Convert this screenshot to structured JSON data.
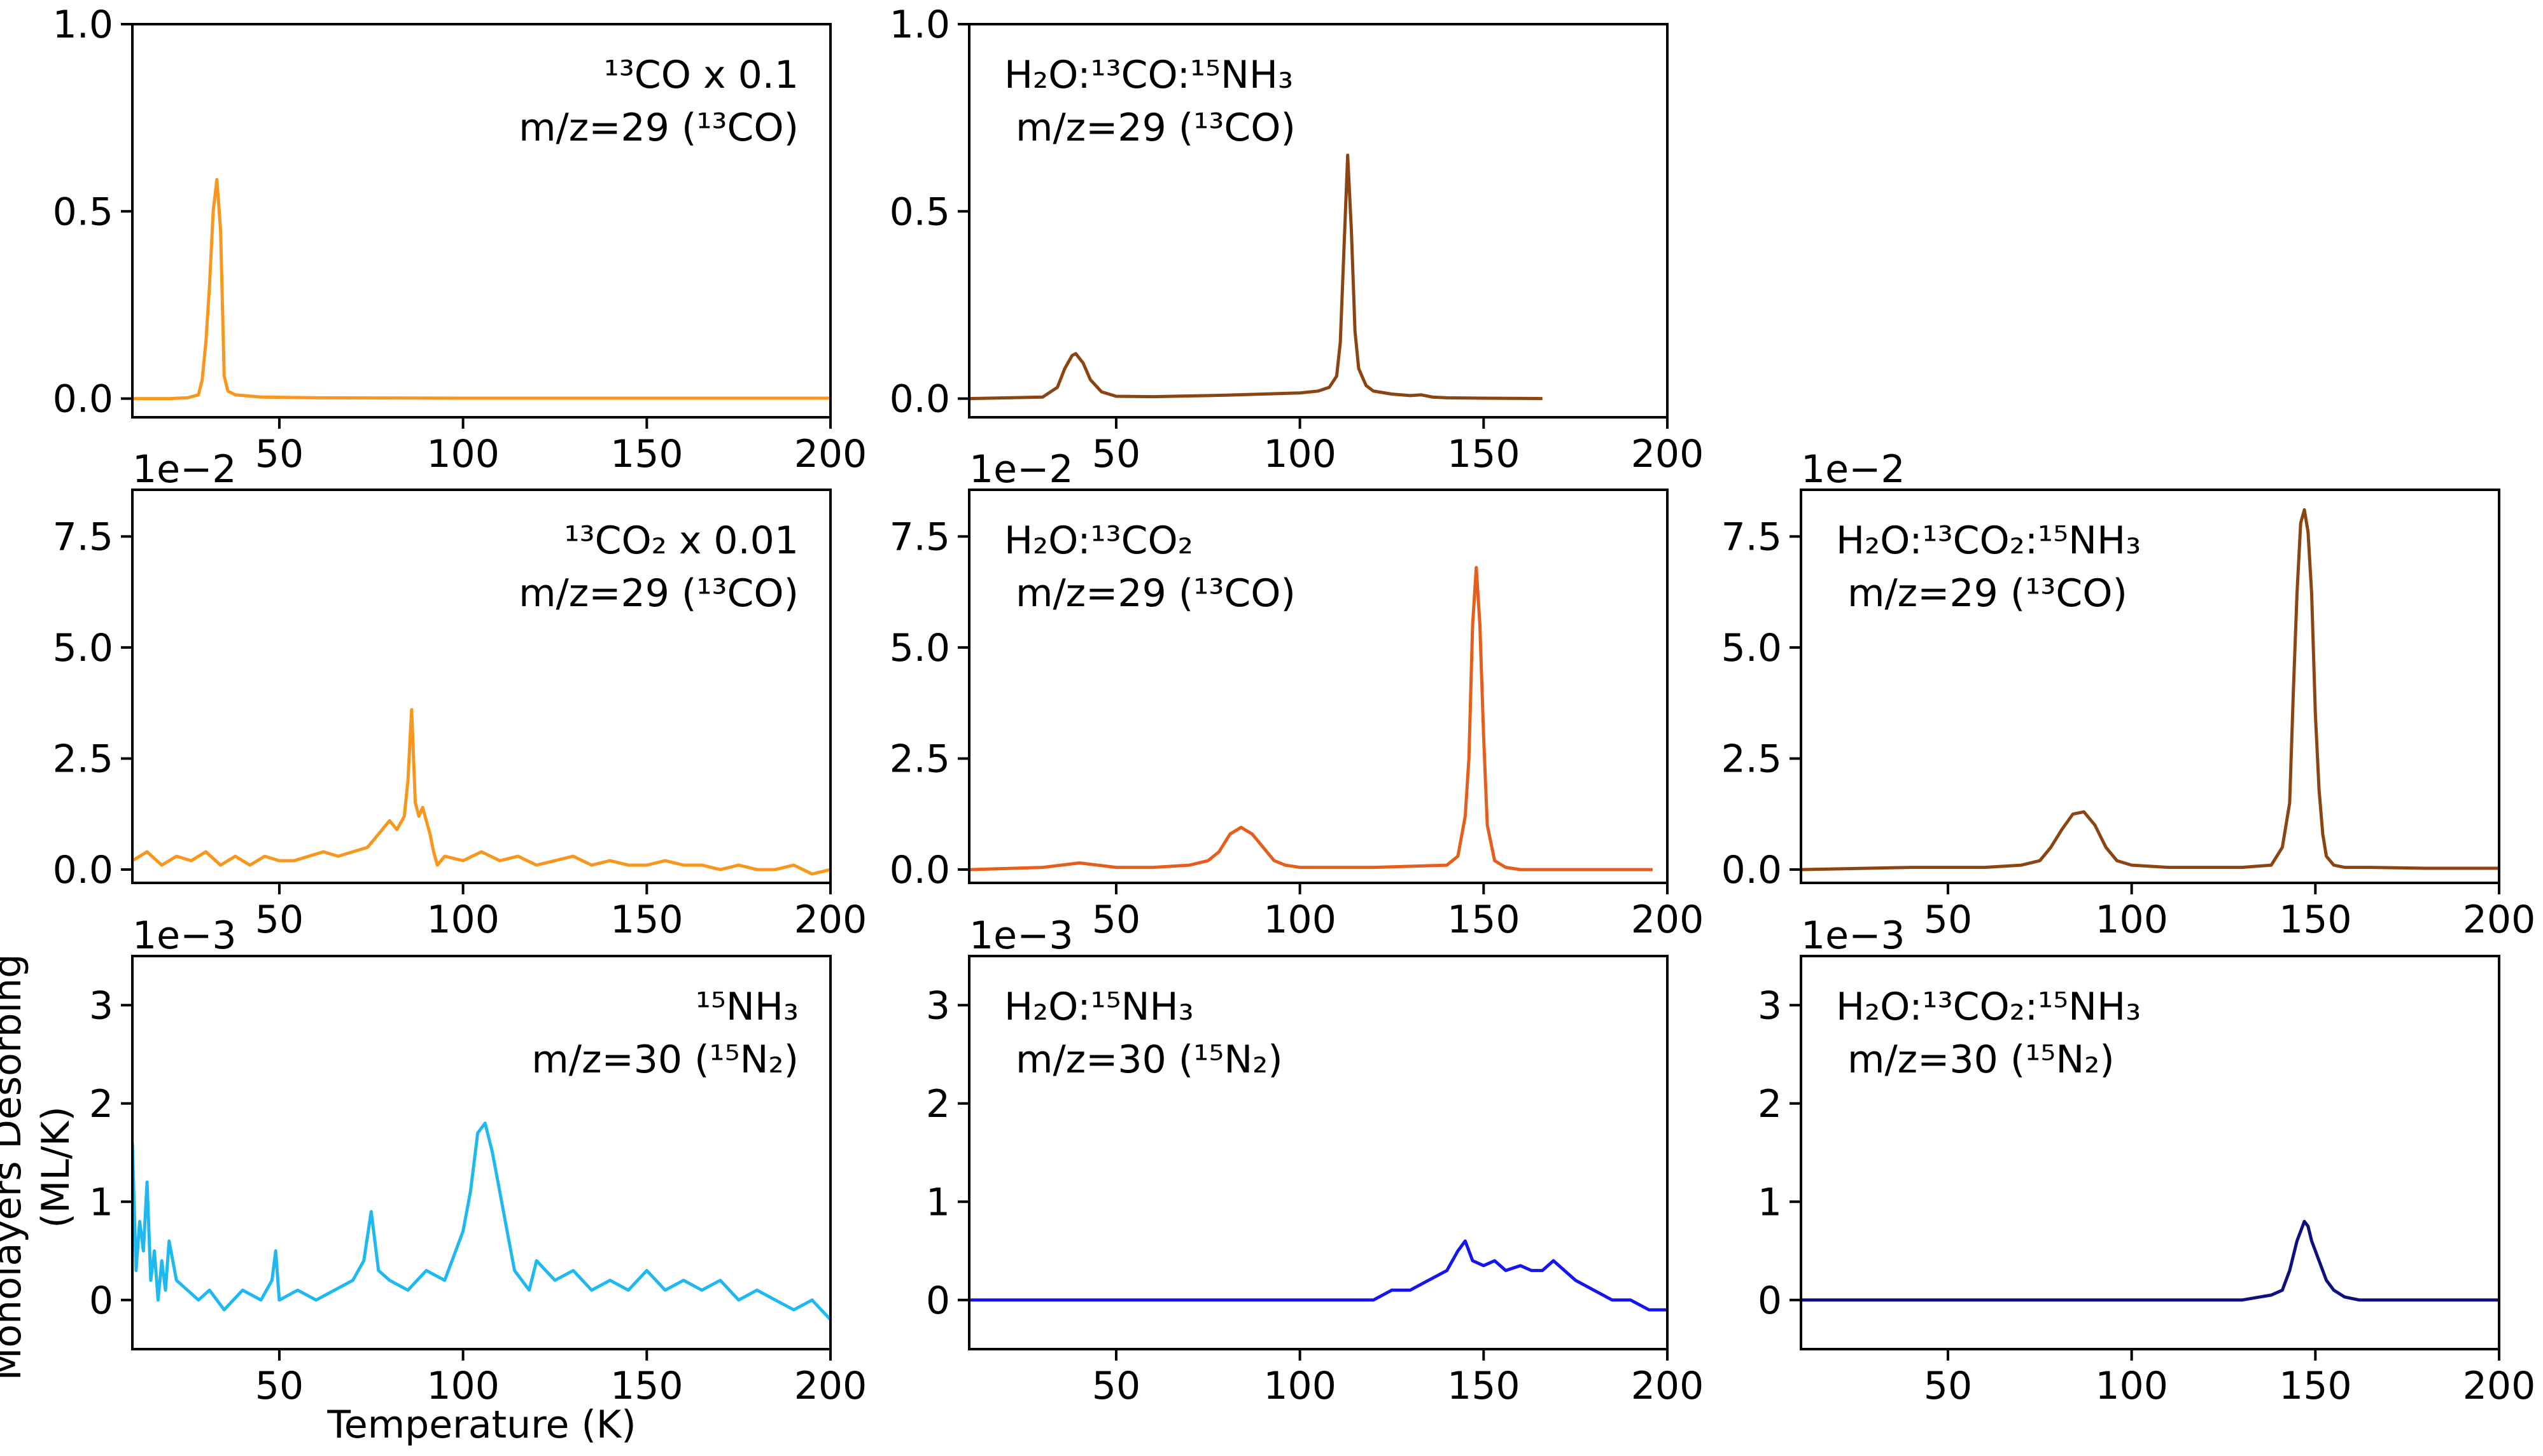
{
  "figure": {
    "ylabel_line1": "Monolayers Desorbing",
    "ylabel_line2": "(ML/K)",
    "xlabel": "Temperature (K)"
  },
  "chart_data": [
    {
      "type": "line",
      "row": 0,
      "col": 0,
      "color": "#F8961E",
      "label_line1": "¹³CO x 0.1",
      "label_line2": "m/z=29 (¹³CO)",
      "xlim": [
        10,
        200
      ],
      "ylim": [
        -0.05,
        1.0
      ],
      "xticks": [
        50,
        100,
        150,
        200
      ],
      "yticks": [
        0.0,
        0.5,
        1.0
      ],
      "ytick_labels": [
        "0.0",
        "0.5",
        "1.0"
      ],
      "offset_text": "",
      "x": [
        10,
        20,
        25,
        28,
        29,
        30,
        31,
        32,
        33,
        34,
        35,
        36,
        38,
        45,
        60,
        100,
        150,
        200
      ],
      "y": [
        0,
        0,
        0.002,
        0.01,
        0.05,
        0.15,
        0.3,
        0.5,
        0.585,
        0.45,
        0.06,
        0.02,
        0.01,
        0.004,
        0.002,
        0.001,
        0.001,
        0.001
      ]
    },
    {
      "type": "line",
      "row": 0,
      "col": 1,
      "color": "#8B4513",
      "label_line1": "H₂O:¹³CO:¹⁵NH₃",
      "label_line2": "m/z=29 (¹³CO)",
      "xlim": [
        10,
        200
      ],
      "ylim": [
        -0.05,
        1.0
      ],
      "xticks": [
        50,
        100,
        150,
        200
      ],
      "yticks": [
        0.0,
        0.5,
        1.0
      ],
      "ytick_labels": [
        "0.0",
        "0.5",
        "1.0"
      ],
      "offset_text": "",
      "x": [
        10,
        30,
        34,
        36,
        38,
        39,
        41,
        43,
        46,
        50,
        60,
        80,
        100,
        105,
        108,
        110,
        111,
        112,
        113,
        114,
        115,
        116,
        118,
        120,
        125,
        130,
        133,
        136,
        140,
        150,
        166
      ],
      "y": [
        0,
        0.004,
        0.03,
        0.08,
        0.115,
        0.12,
        0.095,
        0.05,
        0.018,
        0.006,
        0.005,
        0.009,
        0.015,
        0.02,
        0.03,
        0.06,
        0.15,
        0.4,
        0.65,
        0.45,
        0.18,
        0.08,
        0.035,
        0.02,
        0.012,
        0.008,
        0.01,
        0.004,
        0.002,
        0.001,
        0
      ]
    },
    {
      "type": "line",
      "row": 1,
      "col": 0,
      "color": "#F8961E",
      "label_line1": "¹³CO₂ x 0.01",
      "label_line2": "m/z=29 (¹³CO)",
      "xlim": [
        10,
        200
      ],
      "ylim": [
        -0.003,
        0.0855
      ],
      "xticks": [
        50,
        100,
        150,
        200
      ],
      "yticks": [
        0.0,
        0.025,
        0.05,
        0.075
      ],
      "ytick_labels": [
        "0.0",
        "2.5",
        "5.0",
        "7.5"
      ],
      "offset_text": "1e−2",
      "x": [
        10,
        14,
        18,
        22,
        26,
        30,
        34,
        38,
        42,
        46,
        50,
        54,
        58,
        62,
        66,
        70,
        74,
        76,
        78,
        80,
        82,
        84,
        85,
        86,
        87,
        88,
        89,
        90,
        91,
        92,
        93,
        95,
        100,
        105,
        110,
        115,
        120,
        125,
        130,
        135,
        140,
        145,
        150,
        155,
        160,
        165,
        170,
        175,
        180,
        185,
        190,
        195,
        200
      ],
      "y": [
        0.002,
        0.004,
        0.001,
        0.003,
        0.002,
        0.004,
        0.001,
        0.003,
        0.001,
        0.003,
        0.002,
        0.002,
        0.003,
        0.004,
        0.003,
        0.004,
        0.005,
        0.007,
        0.009,
        0.011,
        0.009,
        0.012,
        0.02,
        0.036,
        0.015,
        0.012,
        0.014,
        0.011,
        0.008,
        0.004,
        0.001,
        0.003,
        0.002,
        0.004,
        0.002,
        0.003,
        0.001,
        0.002,
        0.003,
        0.001,
        0.002,
        0.001,
        0.001,
        0.002,
        0.001,
        0.001,
        0.0,
        0.001,
        0.0,
        0.0,
        0.001,
        -0.001,
        0.0
      ]
    },
    {
      "type": "line",
      "row": 1,
      "col": 1,
      "color": "#E55E1C",
      "label_line1": "H₂O:¹³CO₂",
      "label_line2": "m/z=29 (¹³CO)",
      "xlim": [
        10,
        200
      ],
      "ylim": [
        -0.003,
        0.0855
      ],
      "xticks": [
        50,
        100,
        150,
        200
      ],
      "yticks": [
        0.0,
        0.025,
        0.05,
        0.075
      ],
      "ytick_labels": [
        "0.0",
        "2.5",
        "5.0",
        "7.5"
      ],
      "offset_text": "1e−2",
      "x": [
        10,
        30,
        35,
        40,
        45,
        50,
        60,
        70,
        75,
        78,
        81,
        84,
        87,
        90,
        93,
        96,
        100,
        120,
        140,
        143,
        145,
        146,
        147,
        148,
        149,
        150,
        151,
        153,
        156,
        160,
        180,
        196
      ],
      "y": [
        0,
        0.0005,
        0.001,
        0.0015,
        0.001,
        0.0005,
        0.0005,
        0.001,
        0.002,
        0.004,
        0.008,
        0.0095,
        0.008,
        0.005,
        0.002,
        0.001,
        0.0005,
        0.0005,
        0.001,
        0.003,
        0.012,
        0.025,
        0.055,
        0.068,
        0.055,
        0.03,
        0.01,
        0.002,
        0.0005,
        0.0,
        0.0,
        0.0
      ]
    },
    {
      "type": "line",
      "row": 1,
      "col": 2,
      "color": "#8B4513",
      "label_line1": "H₂O:¹³CO₂:¹⁵NH₃",
      "label_line2": "m/z=29 (¹³CO)",
      "xlim": [
        10,
        200
      ],
      "ylim": [
        -0.003,
        0.0855
      ],
      "xticks": [
        50,
        100,
        150,
        200
      ],
      "yticks": [
        0.0,
        0.025,
        0.05,
        0.075
      ],
      "ytick_labels": [
        "0.0",
        "2.5",
        "5.0",
        "7.5"
      ],
      "offset_text": "1e−2",
      "x": [
        10,
        40,
        60,
        70,
        75,
        78,
        81,
        84,
        87,
        90,
        93,
        96,
        100,
        110,
        120,
        130,
        138,
        141,
        143,
        144,
        145,
        146,
        147,
        148,
        149,
        150,
        151,
        152,
        153,
        155,
        158,
        165,
        180,
        200
      ],
      "y": [
        0,
        0.0005,
        0.0005,
        0.001,
        0.002,
        0.005,
        0.009,
        0.0125,
        0.013,
        0.01,
        0.005,
        0.002,
        0.001,
        0.0005,
        0.0005,
        0.0005,
        0.001,
        0.005,
        0.015,
        0.04,
        0.062,
        0.078,
        0.081,
        0.076,
        0.062,
        0.035,
        0.018,
        0.008,
        0.003,
        0.001,
        0.0005,
        0.0005,
        0.0003,
        0.0003
      ]
    },
    {
      "type": "line",
      "row": 2,
      "col": 0,
      "color": "#1FB8F0",
      "label_line1": "¹⁵NH₃",
      "label_line2": "m/z=30 (¹⁵N₂)",
      "xlim": [
        10,
        200
      ],
      "ylim": [
        -0.0005,
        0.0035
      ],
      "xticks": [
        50,
        100,
        150,
        200
      ],
      "yticks": [
        0.0,
        0.001,
        0.002,
        0.003
      ],
      "ytick_labels": [
        "0",
        "1",
        "2",
        "3"
      ],
      "offset_text": "1e−3",
      "x": [
        10,
        11,
        12,
        13,
        14,
        15,
        16,
        17,
        18,
        19,
        20,
        22,
        25,
        28,
        31,
        35,
        40,
        45,
        48,
        49,
        50,
        55,
        60,
        65,
        70,
        73,
        75,
        77,
        80,
        85,
        90,
        95,
        98,
        100,
        102,
        104,
        106,
        108,
        110,
        112,
        114,
        116,
        118,
        120,
        125,
        130,
        135,
        140,
        145,
        150,
        155,
        160,
        165,
        170,
        175,
        180,
        185,
        190,
        195,
        200
      ],
      "y": [
        0.0016,
        0.0003,
        0.0008,
        0.0005,
        0.0012,
        0.0002,
        0.0005,
        0.0,
        0.0004,
        0.0001,
        0.0006,
        0.0002,
        0.0001,
        0.0,
        0.0001,
        -0.0001,
        0.0001,
        0.0,
        0.0002,
        0.0005,
        0.0,
        0.0001,
        0.0,
        0.0001,
        0.0002,
        0.0004,
        0.0009,
        0.0003,
        0.0002,
        0.0001,
        0.0003,
        0.0002,
        0.0005,
        0.0007,
        0.0011,
        0.0017,
        0.0018,
        0.0015,
        0.0011,
        0.0007,
        0.0003,
        0.0002,
        0.0001,
        0.0004,
        0.0002,
        0.0003,
        0.0001,
        0.0002,
        0.0001,
        0.0003,
        0.0001,
        0.0002,
        0.0001,
        0.0002,
        0.0,
        0.0001,
        0.0,
        -0.0001,
        0.0,
        -0.0002
      ]
    },
    {
      "type": "line",
      "row": 2,
      "col": 1,
      "color": "#1515EE",
      "label_line1": "H₂O:¹⁵NH₃",
      "label_line2": "m/z=30 (¹⁵N₂)",
      "xlim": [
        10,
        200
      ],
      "ylim": [
        -0.0005,
        0.0035
      ],
      "xticks": [
        50,
        100,
        150,
        200
      ],
      "yticks": [
        0.0,
        0.001,
        0.002,
        0.003
      ],
      "ytick_labels": [
        "0",
        "1",
        "2",
        "3"
      ],
      "offset_text": "1e−3",
      "x": [
        10,
        20,
        30,
        40,
        50,
        60,
        70,
        80,
        90,
        100,
        110,
        120,
        125,
        130,
        135,
        140,
        143,
        145,
        147,
        150,
        153,
        156,
        160,
        163,
        166,
        169,
        172,
        175,
        180,
        185,
        190,
        195,
        200
      ],
      "y": [
        0.0,
        0.0,
        0.0,
        0.0,
        0.0,
        0.0,
        0.0,
        0.0,
        0.0,
        0.0,
        0.0,
        0.0,
        0.0001,
        0.0001,
        0.0002,
        0.0003,
        0.0005,
        0.0006,
        0.0004,
        0.00035,
        0.0004,
        0.0003,
        0.00035,
        0.0003,
        0.0003,
        0.0004,
        0.0003,
        0.0002,
        0.0001,
        0.0,
        0.0,
        -0.0001,
        -0.0001
      ]
    },
    {
      "type": "line",
      "row": 2,
      "col": 2,
      "color": "#0F0F80",
      "label_line1": "H₂O:¹³CO₂:¹⁵NH₃",
      "label_line2": "m/z=30 (¹⁵N₂)",
      "xlim": [
        10,
        200
      ],
      "ylim": [
        -0.0005,
        0.0035
      ],
      "xticks": [
        50,
        100,
        150,
        200
      ],
      "yticks": [
        0.0,
        0.001,
        0.002,
        0.003
      ],
      "ytick_labels": [
        "0",
        "1",
        "2",
        "3"
      ],
      "offset_text": "1e−3",
      "x": [
        10,
        30,
        50,
        70,
        90,
        110,
        130,
        138,
        141,
        143,
        145,
        147,
        148,
        149,
        151,
        153,
        155,
        158,
        162,
        170,
        185,
        200
      ],
      "y": [
        0.0,
        0.0,
        0.0,
        0.0,
        0.0,
        0.0,
        0.0,
        5e-05,
        0.0001,
        0.0003,
        0.0006,
        0.0008,
        0.00075,
        0.0006,
        0.0004,
        0.0002,
        0.0001,
        3e-05,
        0.0,
        0.0,
        0.0,
        0.0
      ]
    }
  ]
}
